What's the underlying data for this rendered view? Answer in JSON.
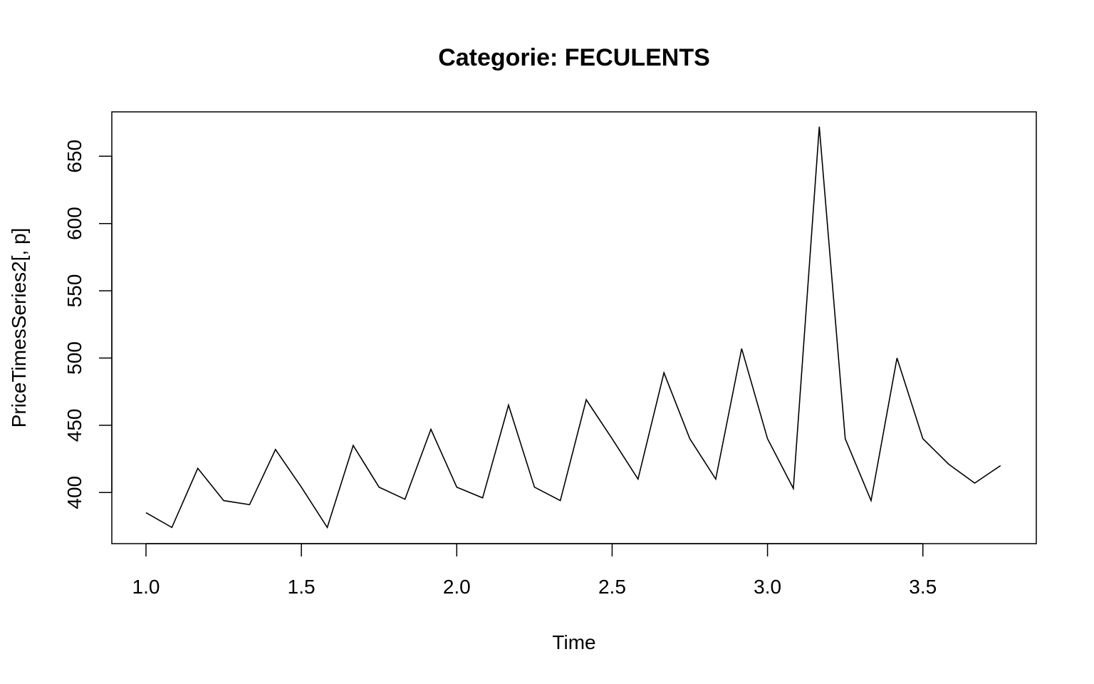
{
  "chart_data": {
    "type": "line",
    "title": "Categorie: FECULENTS",
    "xlabel": "Time",
    "ylabel": "PriceTimesSeries2[, p]",
    "xlim": [
      0.89,
      3.865
    ],
    "ylim": [
      362,
      683
    ],
    "grid": false,
    "legend": "none",
    "x_ticks": [
      "1.0",
      "1.5",
      "2.0",
      "2.5",
      "3.0",
      "3.5"
    ],
    "y_ticks": [
      "400",
      "450",
      "500",
      "550",
      "600",
      "650"
    ],
    "line_color": "#000000",
    "series": [
      {
        "x": [
          1.0,
          1.0833,
          1.1667,
          1.25,
          1.3333,
          1.4167,
          1.5,
          1.5833,
          1.6667,
          1.75,
          1.8333,
          1.9167,
          2.0,
          2.0833,
          2.1667,
          2.25,
          2.3333,
          2.4167,
          2.5,
          2.5833,
          2.6667,
          2.75,
          2.8333,
          2.9167,
          3.0,
          3.0833,
          3.1667,
          3.25,
          3.3333,
          3.4167,
          3.5,
          3.5833,
          3.6667,
          3.75
        ],
        "values": [
          385,
          374,
          418,
          394,
          391,
          432,
          404,
          374,
          435,
          404,
          395,
          447,
          404,
          396,
          465,
          404,
          394,
          469,
          440,
          410,
          489,
          440,
          410,
          507,
          440,
          403,
          672,
          440,
          394,
          500,
          440,
          421,
          407,
          420
        ]
      }
    ]
  }
}
